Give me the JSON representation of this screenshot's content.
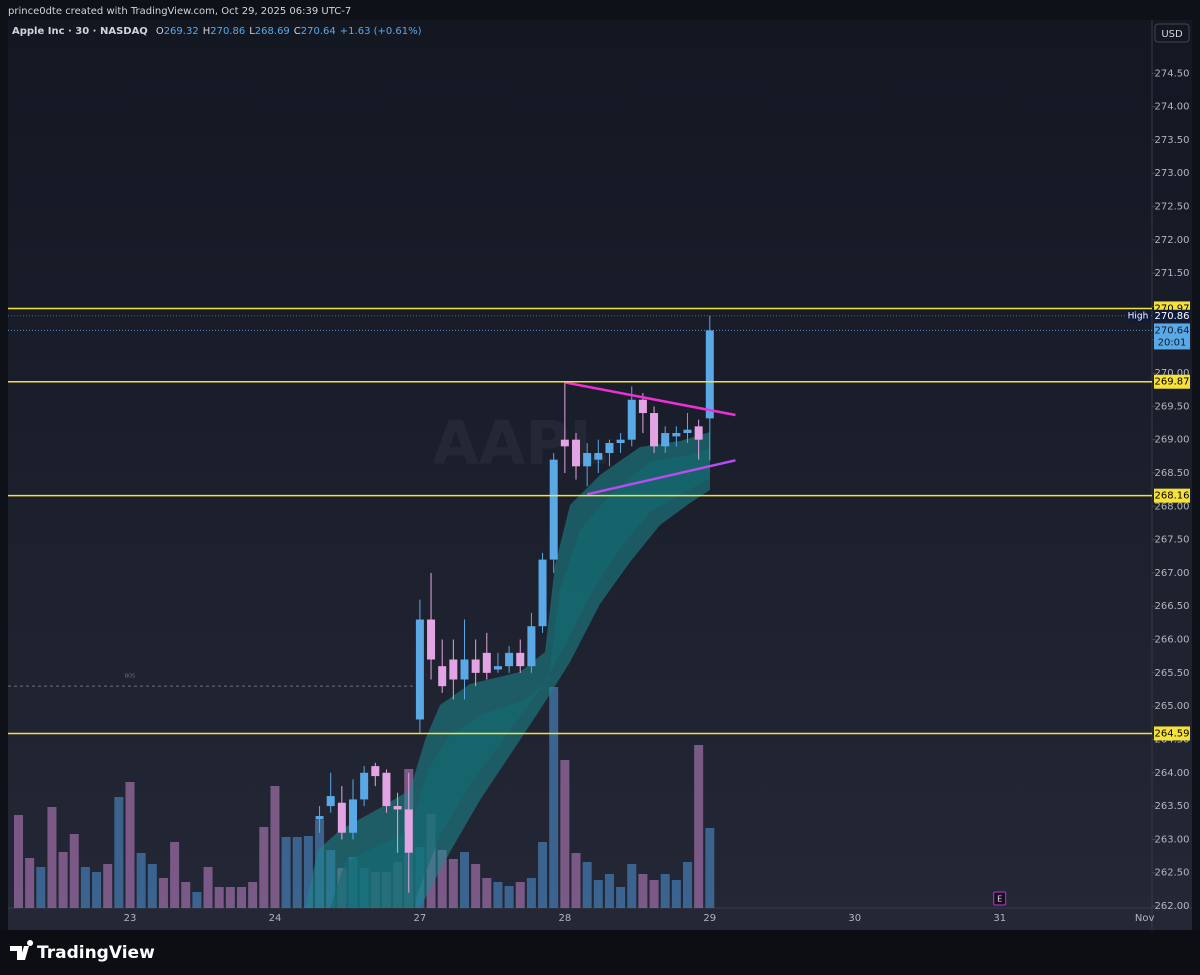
{
  "attribution": "prince0dte created with TradingView.com, Oct 29, 2025 06:39 UTC-7",
  "footer": {
    "logo": "TradingView"
  },
  "chart_data": {
    "type": "candlestick",
    "symbol": "Apple Inc · 30 · NASDAQ",
    "legend": [
      {
        "label": "O",
        "value": 269.32
      },
      {
        "label": "H",
        "value": 270.86
      },
      {
        "label": "L",
        "value": 268.69
      },
      {
        "label": "C",
        "value": 270.64
      }
    ],
    "change": "+1.63 (+0.61%)",
    "currency": "USD",
    "watermark": "AAPL",
    "categories": [
      null,
      null,
      null,
      null,
      null,
      null,
      null,
      null,
      null,
      null,
      "23",
      null,
      null,
      null,
      null,
      null,
      null,
      null,
      null,
      null,
      null,
      null,
      null,
      "24",
      null,
      null,
      null,
      null,
      null,
      null,
      null,
      null,
      null,
      null,
      null,
      null,
      "27",
      null,
      null,
      null,
      null,
      null,
      null,
      null,
      null,
      null,
      null,
      null,
      null,
      "28",
      null,
      null,
      null,
      null,
      null,
      null,
      null,
      null,
      null,
      null,
      null,
      null,
      "29",
      null,
      null,
      null,
      null,
      null,
      null,
      null,
      null,
      null,
      null,
      null,
      null,
      "30",
      null,
      null,
      null,
      null,
      null,
      null,
      null,
      null,
      null,
      null,
      null,
      null,
      "31",
      null,
      null,
      null,
      null,
      null,
      null,
      null,
      null,
      null,
      null,
      null,
      null,
      "Nov"
    ],
    "ohlc": {
      "open": [
        null,
        null,
        null,
        null,
        null,
        null,
        null,
        null,
        null,
        null,
        null,
        null,
        null,
        null,
        null,
        null,
        null,
        null,
        null,
        null,
        null,
        null,
        null,
        null,
        null,
        null,
        null,
        263.3,
        263.5,
        263.55,
        263.1,
        263.6,
        264.1,
        264.0,
        263.5,
        263.45,
        264.8,
        266.3,
        265.6,
        265.7,
        265.4,
        265.7,
        265.8,
        265.55,
        265.6,
        265.8,
        265.6,
        266.2,
        267.2,
        269.0,
        269.0,
        268.6,
        268.7,
        268.8,
        268.95,
        269.0,
        269.6,
        269.4,
        268.9,
        269.05,
        269.1,
        269.2,
        269.32,
        null,
        null,
        null,
        null,
        null,
        null,
        null,
        null,
        null,
        null,
        null,
        null,
        null,
        null,
        null,
        null,
        null,
        null,
        null,
        null,
        null,
        null,
        null,
        null,
        null,
        null,
        null,
        null,
        null,
        null,
        null,
        null,
        null,
        null,
        null,
        null,
        null,
        null
      ],
      "high": [
        null,
        null,
        null,
        null,
        null,
        null,
        null,
        null,
        null,
        null,
        null,
        null,
        null,
        null,
        null,
        null,
        null,
        null,
        null,
        null,
        null,
        null,
        null,
        null,
        null,
        null,
        null,
        263.5,
        264.0,
        263.8,
        263.9,
        264.1,
        264.15,
        264.05,
        263.7,
        264.0,
        266.6,
        267.0,
        266.0,
        266.0,
        266.3,
        266.0,
        266.1,
        265.8,
        265.9,
        266.0,
        266.4,
        267.3,
        268.8,
        269.87,
        269.1,
        268.95,
        269.0,
        269.0,
        269.1,
        269.8,
        269.7,
        269.5,
        269.2,
        269.2,
        269.4,
        269.3,
        270.86,
        null,
        null,
        null,
        null,
        null,
        null,
        null,
        null,
        null,
        null,
        null,
        null,
        null,
        null,
        null,
        null,
        null,
        null,
        null,
        null,
        null,
        null,
        null,
        null,
        null,
        null,
        null,
        null,
        null,
        null,
        null,
        null,
        null,
        null,
        null,
        null,
        null,
        null
      ],
      "low": [
        null,
        null,
        null,
        null,
        null,
        null,
        null,
        null,
        null,
        null,
        null,
        null,
        null,
        null,
        null,
        null,
        null,
        null,
        null,
        null,
        null,
        null,
        null,
        null,
        null,
        null,
        null,
        263.1,
        263.4,
        263.0,
        263.0,
        263.5,
        263.8,
        263.4,
        262.8,
        262.2,
        264.6,
        265.4,
        265.2,
        265.1,
        265.1,
        265.3,
        265.4,
        265.5,
        265.5,
        265.5,
        265.5,
        266.1,
        267.0,
        268.5,
        268.4,
        268.3,
        268.5,
        268.6,
        268.8,
        268.9,
        269.1,
        268.8,
        268.8,
        268.9,
        268.95,
        268.7,
        268.69,
        null,
        null,
        null,
        null,
        null,
        null,
        null,
        null,
        null,
        null,
        null,
        null,
        null,
        null,
        null,
        null,
        null,
        null,
        null,
        null,
        null,
        null,
        null,
        null,
        null,
        null,
        null,
        null,
        null,
        null,
        null,
        null,
        null,
        null,
        null,
        null,
        null,
        null
      ],
      "close": [
        null,
        null,
        null,
        null,
        null,
        null,
        null,
        null,
        null,
        null,
        null,
        null,
        null,
        null,
        null,
        null,
        null,
        null,
        null,
        null,
        null,
        null,
        null,
        null,
        null,
        null,
        null,
        263.35,
        263.65,
        263.1,
        263.6,
        264.0,
        263.95,
        263.5,
        263.45,
        262.8,
        266.3,
        265.7,
        265.3,
        265.4,
        265.7,
        265.5,
        265.5,
        265.6,
        265.8,
        265.6,
        266.2,
        267.2,
        268.7,
        268.9,
        268.6,
        268.8,
        268.8,
        268.95,
        269.0,
        269.6,
        269.4,
        268.9,
        269.1,
        269.1,
        269.15,
        269.0,
        270.64,
        null,
        null,
        null,
        null,
        null,
        null,
        null,
        null,
        null,
        null,
        null,
        null,
        null,
        null,
        null,
        null,
        null,
        null,
        null,
        null,
        null,
        null,
        null,
        null,
        null,
        null,
        null,
        null,
        null,
        null,
        null,
        null,
        null,
        null,
        null,
        null,
        null,
        null
      ]
    },
    "up_color": "#5aa9e6",
    "down_color": "#e3a4e3",
    "volume": {
      "values": [
        93,
        50,
        41,
        101,
        56,
        74,
        41,
        36,
        44,
        111,
        126,
        55,
        44,
        30,
        66,
        26,
        16,
        41,
        21,
        21,
        21,
        26,
        81,
        122,
        71,
        71,
        72,
        88,
        58,
        40,
        51,
        40,
        36,
        36,
        46,
        139,
        61,
        94,
        58,
        49,
        56,
        44,
        30,
        26,
        22,
        26,
        30,
        66,
        221,
        148,
        55,
        46,
        28,
        34,
        21,
        44,
        34,
        28,
        34,
        28,
        46,
        163,
        80,
        null,
        null,
        null,
        null,
        null,
        null,
        null,
        null,
        null,
        null,
        null,
        null,
        null,
        null,
        null,
        null,
        null,
        null,
        null,
        null,
        null,
        null,
        null,
        null,
        null,
        null,
        null,
        null,
        null,
        null,
        null,
        null,
        null,
        null,
        null,
        null,
        null,
        null
      ],
      "colors": [
        "#8a6394",
        "#8a6394",
        "#3f6f9f",
        "#8a6394",
        "#8a6394",
        "#8a6394",
        "#3f6f9f",
        "#3f6f9f",
        "#8a6394",
        "#3f6f9f",
        "#8a6394",
        "#3f6f9f",
        "#3f6f9f",
        "#8a6394",
        "#8a6394",
        "#8a6394",
        "#3f6f9f",
        "#8a6394",
        "#8a6394",
        "#8a6394",
        "#8a6394",
        "#8a6394",
        "#8a6394",
        "#8a6394",
        "#3f6f9f",
        "#3f6f9f",
        "#3f6f9f",
        "#3f6f9f",
        "#3f6f9f",
        "#8a6394",
        "#3f6f9f",
        "#3f6f9f",
        "#8a6394",
        "#8a6394",
        "#8a6394",
        "#8a6394",
        "#3f6f9f",
        "#8a6394",
        "#8a6394",
        "#8a6394",
        "#3f6f9f",
        "#8a6394",
        "#8a6394",
        "#3f6f9f",
        "#3f6f9f",
        "#8a6394",
        "#3f6f9f",
        "#3f6f9f",
        "#3f6f9f",
        "#8a6394",
        "#8a6394",
        "#3f6f9f",
        "#3f6f9f",
        "#3f6f9f",
        "#3f6f9f",
        "#3f6f9f",
        "#8a6394",
        "#8a6394",
        "#3f6f9f",
        "#3f6f9f",
        "#3f6f9f",
        "#8a6394",
        "#3f6f9f",
        null,
        null,
        null,
        null,
        null,
        null,
        null,
        null,
        null,
        null,
        null,
        null,
        null,
        null,
        null,
        null,
        null,
        null,
        null,
        null,
        null,
        null,
        null,
        null,
        null,
        null,
        null,
        null,
        null,
        null,
        null,
        null,
        null,
        null,
        null,
        null,
        null,
        null
      ],
      "vlim": [
        0,
        250
      ]
    },
    "ylim": [
      261.97,
      275.27
    ],
    "yticks": [
      {
        "value": 262,
        "label": "262.00"
      },
      {
        "value": 262.5,
        "label": "262.50"
      },
      {
        "value": 263,
        "label": "263.00"
      },
      {
        "value": 263.5,
        "label": "263.50"
      },
      {
        "value": 264,
        "label": "264.00"
      },
      {
        "value": 264.5,
        "label": "264.50"
      },
      {
        "value": 265,
        "label": "265.00"
      },
      {
        "value": 265.5,
        "label": "265.50"
      },
      {
        "value": 266,
        "label": "266.00"
      },
      {
        "value": 266.5,
        "label": "266.50"
      },
      {
        "value": 267,
        "label": "267.00"
      },
      {
        "value": 267.5,
        "label": "267.50"
      },
      {
        "value": 268,
        "label": "268.00"
      },
      {
        "value": 268.5,
        "label": "268.50"
      },
      {
        "value": 269,
        "label": "269.00"
      },
      {
        "value": 269.5,
        "label": "269.50"
      },
      {
        "value": 270,
        "label": "270.00"
      },
      {
        "value": 270.5,
        "label": "270.50"
      },
      {
        "value": 271,
        "label": "271.00"
      },
      {
        "value": 271.5,
        "label": "271.50"
      },
      {
        "value": 272,
        "label": "272.00"
      },
      {
        "value": 272.5,
        "label": "272.50"
      },
      {
        "value": 273,
        "label": "273.00"
      },
      {
        "value": 273.5,
        "label": "273.50"
      },
      {
        "value": 274,
        "label": "274.00"
      },
      {
        "value": 274.5,
        "label": "274.50"
      }
    ],
    "levels": [
      270.97,
      269.87,
      268.16,
      264.59
    ],
    "level_color": "#f5e13a",
    "high": {
      "label": "High",
      "price": 270.86
    },
    "last": {
      "price": 270.64,
      "countdown": "20:01",
      "color": "#5aa9e6"
    },
    "bos": {
      "label": "BOS",
      "price": 265.3
    },
    "trendlines": [
      {
        "x": [
          49,
          64.3
        ],
        "y": [
          269.86,
          269.37
        ],
        "color": "#ee2fd8"
      },
      {
        "x": [
          51,
          64.3
        ],
        "y": [
          268.18,
          268.69
        ],
        "color": "#b84cf0"
      }
    ],
    "earnings": {
      "label": "E",
      "x": 88
    }
  }
}
